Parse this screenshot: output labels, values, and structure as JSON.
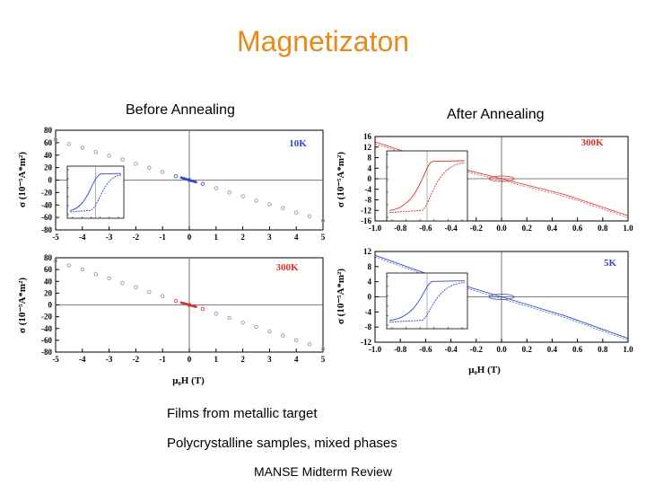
{
  "slide": {
    "title": "Magnetizaton",
    "left_heading": "Before Annealing",
    "right_heading": "After Annealing",
    "note1": "Films from metallic target",
    "note2": "Polycrystalline samples, mixed phases",
    "footer": "MANSE Midterm Review"
  },
  "colors": {
    "title": "#e8891e",
    "red": "#d9302c",
    "blue": "#2f49c9",
    "markers": "#8a8ab8"
  },
  "chart_data": [
    {
      "id": "before-10K",
      "type": "scatter",
      "label": "10K",
      "label_color": "#2f49c9",
      "xlim": [
        -5,
        5
      ],
      "ylim": [
        -80,
        80
      ],
      "xticks": [
        -5,
        -4,
        -3,
        -2,
        -1,
        0,
        1,
        2,
        3,
        4,
        5
      ],
      "yticks": [
        80,
        60,
        40,
        20,
        0,
        -20,
        -40,
        -60,
        -80
      ],
      "ylabel": "σ (10⁻⁵A*m²)",
      "series": [
        {
          "values_x": [
            -5,
            -4.5,
            -4,
            -3.5,
            -3,
            -2.5,
            -2,
            -1.5,
            -1,
            -0.5,
            0,
            0.5,
            1,
            1.5,
            2,
            2.5,
            3,
            3.5,
            4,
            4.5,
            5
          ],
          "values_y": [
            65,
            58,
            52,
            45,
            39,
            33,
            26,
            20,
            13,
            6,
            0,
            -6,
            -13,
            -20,
            -26,
            -33,
            -39,
            -45,
            -52,
            -58,
            -65
          ]
        }
      ],
      "inset": true
    },
    {
      "id": "before-300K",
      "type": "scatter",
      "label": "300K",
      "label_color": "#d9302c",
      "xlim": [
        -5,
        5
      ],
      "ylim": [
        -80,
        80
      ],
      "xticks": [
        -5,
        -4,
        -3,
        -2,
        -1,
        0,
        1,
        2,
        3,
        4,
        5
      ],
      "yticks": [
        80,
        60,
        40,
        20,
        0,
        -20,
        -40,
        -60,
        -80
      ],
      "ylabel": "σ (10⁻⁵A*m²)",
      "xlabel": "μ₀H (T)",
      "series": [
        {
          "values_x": [
            -5,
            -4.5,
            -4,
            -3.5,
            -3,
            -2.5,
            -2,
            -1.5,
            -1,
            -0.5,
            0,
            0.5,
            1,
            1.5,
            2,
            2.5,
            3,
            3.5,
            4,
            4.5,
            5
          ],
          "values_y": [
            75,
            67,
            60,
            52,
            45,
            37,
            30,
            22,
            15,
            7,
            0,
            -7,
            -15,
            -22,
            -30,
            -37,
            -45,
            -52,
            -60,
            -67,
            -75
          ]
        }
      ],
      "inset": false
    },
    {
      "id": "after-300K",
      "type": "line",
      "label": "300K",
      "label_color": "#d9302c",
      "xlim": [
        -1.0,
        1.0
      ],
      "ylim": [
        -16,
        16
      ],
      "xticks": [
        -1.0,
        -0.8,
        -0.6,
        -0.4,
        -0.2,
        0.0,
        0.2,
        0.4,
        0.6,
        0.8,
        1.0
      ],
      "yticks": [
        16,
        12,
        8,
        4,
        0,
        -4,
        -8,
        -12,
        -16
      ],
      "ylabel": "σ (10⁻⁵A*m²)",
      "series": [
        {
          "values_x": [
            -1.0,
            -0.5,
            0,
            0.5,
            1.0
          ],
          "values_y": [
            14,
            6,
            0,
            -6,
            -14
          ]
        }
      ],
      "inset": true
    },
    {
      "id": "after-5K",
      "type": "line",
      "label": "5K",
      "label_color": "#2f49c9",
      "xlim": [
        -1.0,
        1.0
      ],
      "ylim": [
        -12,
        12
      ],
      "xticks": [
        -1.0,
        -0.8,
        -0.6,
        -0.4,
        -0.2,
        0.0,
        0.2,
        0.4,
        0.6,
        0.8,
        1.0
      ],
      "yticks": [
        12,
        8,
        4,
        0,
        -4,
        -8,
        -12
      ],
      "ylabel": "σ (10⁻⁵A*m²)",
      "xlabel": "μ₀H (T)",
      "series": [
        {
          "values_x": [
            -1.0,
            -0.5,
            0,
            0.5,
            1.0
          ],
          "values_y": [
            11,
            5,
            0,
            -5,
            -11
          ]
        }
      ],
      "inset": true
    }
  ]
}
